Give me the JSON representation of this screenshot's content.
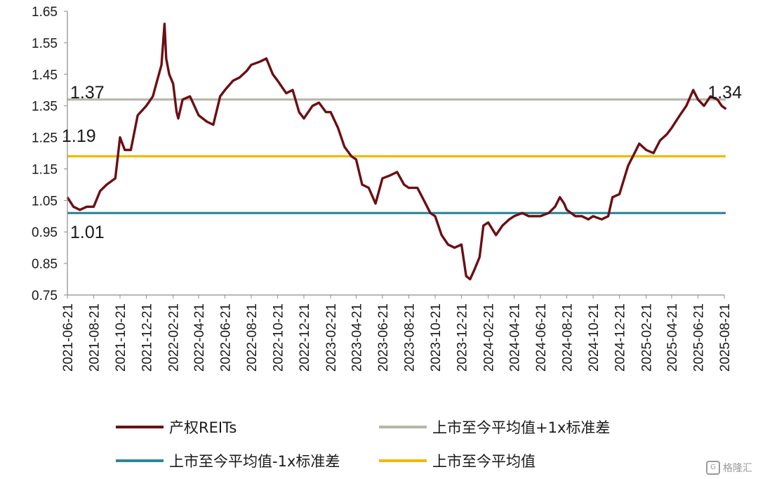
{
  "chart_data": {
    "type": "line",
    "title": "",
    "xlabel": "",
    "ylabel": "",
    "ylim": [
      0.75,
      1.65
    ],
    "yticks": [
      "1.65",
      "1.55",
      "1.45",
      "1.35",
      "1.25",
      "1.15",
      "1.05",
      "0.95",
      "0.85",
      "0.75"
    ],
    "xticks": [
      "2021-06-21",
      "2021-08-21",
      "2021-10-21",
      "2021-12-21",
      "2022-02-21",
      "2022-04-21",
      "2022-06-21",
      "2022-08-21",
      "2022-10-21",
      "2022-12-21",
      "2023-02-21",
      "2023-04-21",
      "2023-06-21",
      "2023-08-21",
      "2023-10-21",
      "2023-12-21",
      "2024-02-21",
      "2024-04-21",
      "2024-06-21",
      "2024-08-21",
      "2024-10-21",
      "2024-12-21",
      "2025-02-21",
      "2025-04-21",
      "2025-06-21",
      "2025-08-21"
    ],
    "x_range": [
      "2021-06-21",
      "2025-08-21"
    ],
    "grid": false,
    "legend_position": "bottom",
    "series": [
      {
        "name": "产权REITs",
        "color": "#6b0f14",
        "points": [
          [
            "2021-06-21",
            1.06
          ],
          [
            "2021-07-05",
            1.03
          ],
          [
            "2021-07-20",
            1.02
          ],
          [
            "2021-08-05",
            1.03
          ],
          [
            "2021-08-21",
            1.03
          ],
          [
            "2021-09-05",
            1.08
          ],
          [
            "2021-09-20",
            1.1
          ],
          [
            "2021-10-10",
            1.12
          ],
          [
            "2021-10-21",
            1.25
          ],
          [
            "2021-11-01",
            1.21
          ],
          [
            "2021-11-15",
            1.21
          ],
          [
            "2021-12-01",
            1.32
          ],
          [
            "2021-12-21",
            1.35
          ],
          [
            "2022-01-05",
            1.38
          ],
          [
            "2022-01-15",
            1.43
          ],
          [
            "2022-01-25",
            1.48
          ],
          [
            "2022-02-01",
            1.61
          ],
          [
            "2022-02-05",
            1.5
          ],
          [
            "2022-02-12",
            1.45
          ],
          [
            "2022-02-21",
            1.42
          ],
          [
            "2022-03-01",
            1.33
          ],
          [
            "2022-03-05",
            1.31
          ],
          [
            "2022-03-15",
            1.37
          ],
          [
            "2022-04-01",
            1.38
          ],
          [
            "2022-04-21",
            1.32
          ],
          [
            "2022-05-10",
            1.3
          ],
          [
            "2022-05-25",
            1.29
          ],
          [
            "2022-06-10",
            1.38
          ],
          [
            "2022-06-21",
            1.4
          ],
          [
            "2022-07-10",
            1.43
          ],
          [
            "2022-07-25",
            1.44
          ],
          [
            "2022-08-10",
            1.46
          ],
          [
            "2022-08-21",
            1.48
          ],
          [
            "2022-09-10",
            1.49
          ],
          [
            "2022-09-25",
            1.5
          ],
          [
            "2022-10-10",
            1.45
          ],
          [
            "2022-10-21",
            1.43
          ],
          [
            "2022-11-10",
            1.39
          ],
          [
            "2022-11-25",
            1.4
          ],
          [
            "2022-12-10",
            1.33
          ],
          [
            "2022-12-21",
            1.31
          ],
          [
            "2023-01-10",
            1.35
          ],
          [
            "2023-01-25",
            1.36
          ],
          [
            "2023-02-10",
            1.33
          ],
          [
            "2023-02-21",
            1.33
          ],
          [
            "2023-03-10",
            1.28
          ],
          [
            "2023-03-25",
            1.22
          ],
          [
            "2023-04-10",
            1.19
          ],
          [
            "2023-04-21",
            1.18
          ],
          [
            "2023-05-05",
            1.1
          ],
          [
            "2023-05-20",
            1.09
          ],
          [
            "2023-06-05",
            1.04
          ],
          [
            "2023-06-21",
            1.12
          ],
          [
            "2023-07-10",
            1.13
          ],
          [
            "2023-07-25",
            1.14
          ],
          [
            "2023-08-10",
            1.1
          ],
          [
            "2023-08-21",
            1.09
          ],
          [
            "2023-09-10",
            1.09
          ],
          [
            "2023-09-25",
            1.05
          ],
          [
            "2023-10-10",
            1.01
          ],
          [
            "2023-10-21",
            1.0
          ],
          [
            "2023-11-05",
            0.94
          ],
          [
            "2023-11-20",
            0.91
          ],
          [
            "2023-12-05",
            0.9
          ],
          [
            "2023-12-21",
            0.91
          ],
          [
            "2024-01-01",
            0.81
          ],
          [
            "2024-01-10",
            0.8
          ],
          [
            "2024-01-20",
            0.83
          ],
          [
            "2024-02-01",
            0.87
          ],
          [
            "2024-02-10",
            0.97
          ],
          [
            "2024-02-21",
            0.98
          ],
          [
            "2024-03-10",
            0.94
          ],
          [
            "2024-03-25",
            0.97
          ],
          [
            "2024-04-10",
            0.99
          ],
          [
            "2024-04-21",
            1.0
          ],
          [
            "2024-05-10",
            1.01
          ],
          [
            "2024-05-25",
            1.0
          ],
          [
            "2024-06-10",
            1.0
          ],
          [
            "2024-06-21",
            1.0
          ],
          [
            "2024-07-10",
            1.01
          ],
          [
            "2024-07-25",
            1.03
          ],
          [
            "2024-08-05",
            1.06
          ],
          [
            "2024-08-15",
            1.04
          ],
          [
            "2024-08-21",
            1.02
          ],
          [
            "2024-09-10",
            1.0
          ],
          [
            "2024-09-25",
            1.0
          ],
          [
            "2024-10-10",
            0.99
          ],
          [
            "2024-10-21",
            1.0
          ],
          [
            "2024-11-10",
            0.99
          ],
          [
            "2024-11-25",
            1.0
          ],
          [
            "2024-12-05",
            1.06
          ],
          [
            "2024-12-21",
            1.07
          ],
          [
            "2025-01-10",
            1.16
          ],
          [
            "2025-01-25",
            1.2
          ],
          [
            "2025-02-05",
            1.23
          ],
          [
            "2025-02-21",
            1.21
          ],
          [
            "2025-03-10",
            1.2
          ],
          [
            "2025-03-25",
            1.24
          ],
          [
            "2025-04-10",
            1.26
          ],
          [
            "2025-04-21",
            1.28
          ],
          [
            "2025-05-10",
            1.32
          ],
          [
            "2025-05-25",
            1.35
          ],
          [
            "2025-06-10",
            1.4
          ],
          [
            "2025-06-21",
            1.37
          ],
          [
            "2025-07-05",
            1.35
          ],
          [
            "2025-07-20",
            1.38
          ],
          [
            "2025-08-05",
            1.37
          ],
          [
            "2025-08-15",
            1.35
          ],
          [
            "2025-08-25",
            1.34
          ]
        ]
      },
      {
        "name": "上市至今平均值+1x标准差",
        "color": "#b8b6aa",
        "value": 1.37
      },
      {
        "name": "上市至今平均值-1x标准差",
        "color": "#2e8794",
        "value": 1.01
      },
      {
        "name": "上市至今平均值",
        "color": "#f5b800",
        "value": 1.19
      }
    ],
    "annotations": [
      "1.37",
      "1.19",
      "1.01",
      "1.34"
    ]
  },
  "legend": [
    {
      "label": "产权REITs",
      "color": "#6b0f14"
    },
    {
      "label": "上市至今平均值+1x标准差",
      "color": "#b8b6aa"
    },
    {
      "label": "上市至今平均值-1x标准差",
      "color": "#2e8794"
    },
    {
      "label": "上市至今平均值",
      "color": "#f5b800"
    }
  ],
  "watermark": "格隆汇"
}
